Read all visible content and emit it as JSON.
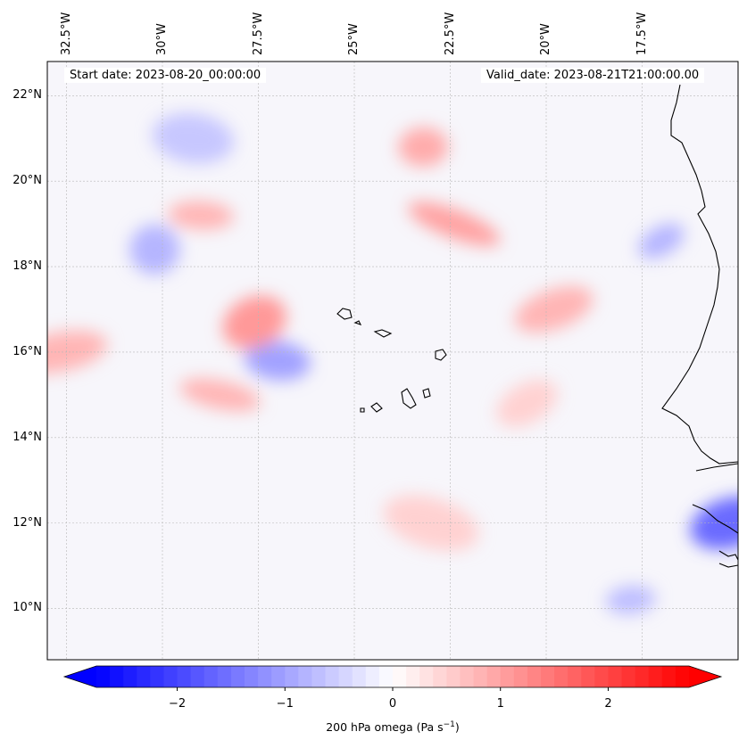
{
  "map": {
    "projection": "PlateCarree",
    "extent_lon": [
      -33.0,
      -15.0
    ],
    "extent_lat": [
      8.8,
      22.8
    ],
    "lon_ticks": [
      {
        "value": -32.5,
        "label": "32.5°W"
      },
      {
        "value": -30.0,
        "label": "30°W"
      },
      {
        "value": -27.5,
        "label": "27.5°W"
      },
      {
        "value": -25.0,
        "label": "25°W"
      },
      {
        "value": -22.5,
        "label": "22.5°W"
      },
      {
        "value": -20.0,
        "label": "20°W"
      },
      {
        "value": -17.5,
        "label": "17.5°W"
      }
    ],
    "lat_ticks": [
      {
        "value": 22,
        "label": "22°N"
      },
      {
        "value": 20,
        "label": "20°N"
      },
      {
        "value": 18,
        "label": "18°N"
      },
      {
        "value": 16,
        "label": "16°N"
      },
      {
        "value": 14,
        "label": "14°N"
      },
      {
        "value": 12,
        "label": "12°N"
      },
      {
        "value": 10,
        "label": "10°N"
      }
    ],
    "gridlines": true,
    "start_date": "Start date: 2023-08-20_00:00:00",
    "valid_date": "Valid_date: 2023-08-21T21:00:00.00",
    "field": "200 hPa omega",
    "colormap": "bwr",
    "colormap_colors": {
      "negative": "#0000ff",
      "zero": "#ffffff",
      "positive": "#ff0000"
    },
    "features": [
      {
        "type": "blob",
        "lon": -17.0,
        "lat": 18.6,
        "value": -0.8
      },
      {
        "type": "blob",
        "lon": -27.0,
        "lat": 15.8,
        "value": -1.0
      },
      {
        "type": "blob",
        "lon": -15.2,
        "lat": 12.0,
        "value": -1.6
      },
      {
        "type": "blob",
        "lon": -22.4,
        "lat": 19.0,
        "value": 1.0
      },
      {
        "type": "blob",
        "lon": -23.2,
        "lat": 20.8,
        "value": 0.9
      },
      {
        "type": "blob",
        "lon": -27.6,
        "lat": 16.7,
        "value": 1.1
      },
      {
        "type": "blob",
        "lon": -28.5,
        "lat": 15.0,
        "value": 0.8
      },
      {
        "type": "blob",
        "lon": -32.7,
        "lat": 16.0,
        "value": 0.8
      },
      {
        "type": "blob",
        "lon": -30.2,
        "lat": 18.4,
        "value": -0.8
      },
      {
        "type": "blob",
        "lon": -29.0,
        "lat": 19.2,
        "value": 0.8
      },
      {
        "type": "blob",
        "lon": -19.8,
        "lat": 17.0,
        "value": 0.8
      },
      {
        "type": "blob",
        "lon": -23.0,
        "lat": 12.0,
        "value": 0.5
      },
      {
        "type": "blob",
        "lon": -17.8,
        "lat": 10.2,
        "value": -0.7
      },
      {
        "type": "blob",
        "lon": -20.5,
        "lat": 14.8,
        "value": 0.5
      },
      {
        "type": "blob",
        "lon": -29.2,
        "lat": 21.0,
        "value": -0.6
      }
    ]
  },
  "colorbar": {
    "vmin": -2.75,
    "vmax": 2.75,
    "levels": 44,
    "ticks": [
      {
        "value": -2,
        "label": "−2"
      },
      {
        "value": -1,
        "label": "−1"
      },
      {
        "value": 0,
        "label": "0"
      },
      {
        "value": 1,
        "label": "1"
      },
      {
        "value": 2,
        "label": "2"
      }
    ],
    "label_main": "200 hPa omega (Pa s",
    "label_exp": "−1",
    "label_close": ")"
  }
}
